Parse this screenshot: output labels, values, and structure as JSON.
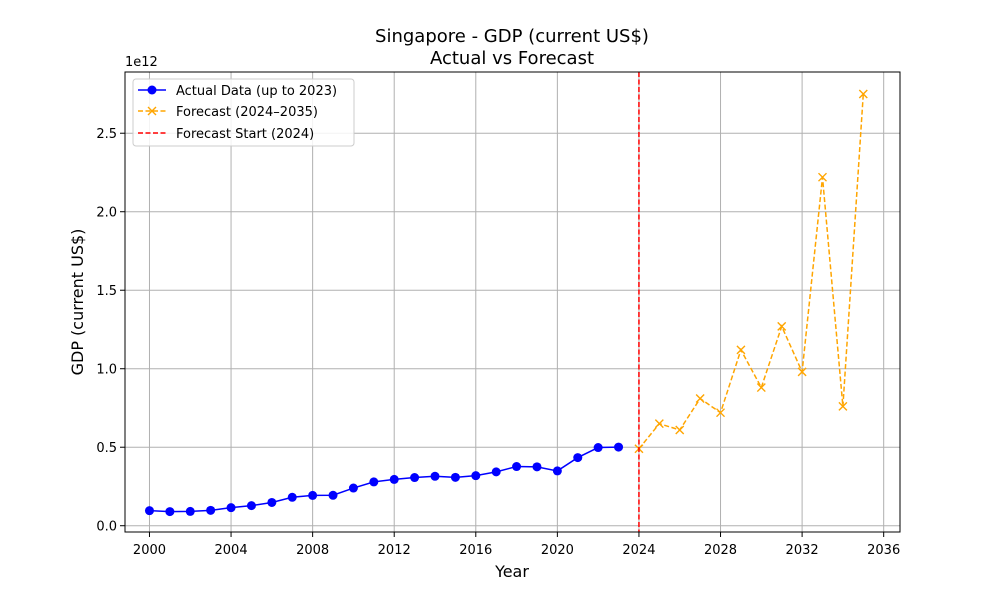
{
  "chart_data": {
    "type": "line",
    "title": "Singapore - GDP (current US$)",
    "subtitle": "Actual vs Forecast",
    "xlabel": "Year",
    "ylabel": "GDP (current US$)",
    "y_multiplier_label": "1e12",
    "xlim": [
      1998.8,
      2036.8
    ],
    "ylim": [
      -0.04,
      2.89
    ],
    "x_ticks": [
      2000,
      2004,
      2008,
      2012,
      2016,
      2020,
      2024,
      2028,
      2032,
      2036
    ],
    "y_ticks": [
      0.0,
      0.5,
      1.0,
      1.5,
      2.0,
      2.5
    ],
    "y_tick_labels": [
      "0.0",
      "0.5",
      "1.0",
      "1.5",
      "2.0",
      "2.5"
    ],
    "grid": true,
    "legend_position": "top-left",
    "forecast_start": 2024,
    "series": [
      {
        "name": "Actual Data (up to 2023)",
        "color": "#0000ff",
        "style": "solid",
        "marker": "circle",
        "x": [
          2000,
          2001,
          2002,
          2003,
          2004,
          2005,
          2006,
          2007,
          2008,
          2009,
          2010,
          2011,
          2012,
          2013,
          2014,
          2015,
          2016,
          2017,
          2018,
          2019,
          2020,
          2021,
          2022,
          2023
        ],
        "y": [
          0.096,
          0.09,
          0.091,
          0.098,
          0.115,
          0.128,
          0.148,
          0.181,
          0.193,
          0.194,
          0.24,
          0.279,
          0.295,
          0.307,
          0.315,
          0.308,
          0.319,
          0.343,
          0.377,
          0.375,
          0.349,
          0.434,
          0.498,
          0.501
        ]
      },
      {
        "name": "Forecast (2024–2035)",
        "color": "#ffa500",
        "style": "dashed",
        "marker": "x",
        "x": [
          2024,
          2025,
          2026,
          2027,
          2028,
          2029,
          2030,
          2031,
          2032,
          2033,
          2034,
          2035
        ],
        "y": [
          0.49,
          0.65,
          0.61,
          0.81,
          0.72,
          1.12,
          0.88,
          1.27,
          0.98,
          2.22,
          0.76,
          2.75
        ]
      }
    ],
    "vline": {
      "name": "Forecast Start (2024)",
      "x": 2024,
      "color": "#ff0000",
      "style": "dashed"
    }
  }
}
